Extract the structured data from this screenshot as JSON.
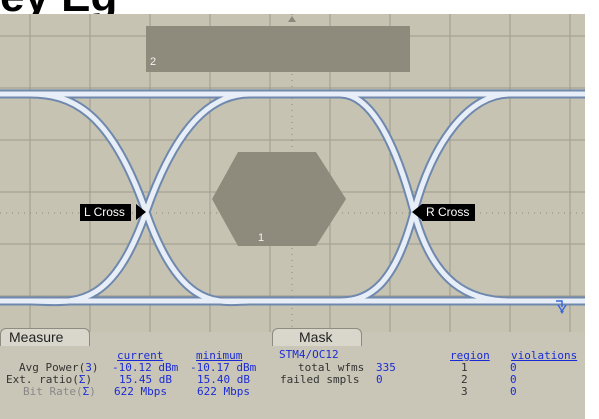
{
  "heading": "ey Eg",
  "screen": {
    "top_box_label": "2",
    "polygon_label": "1",
    "left_marker": "L Cross",
    "right_marker": "R Cross",
    "colors": {
      "screen_bg": "#c6c3b3",
      "grid": "#9e9b8d",
      "mask": "#8e8b7d",
      "trace": "#e8eef7",
      "trace_edge": "#6f88ad",
      "marker_bg": "#000000",
      "accent_blue": "#1a2bd6"
    }
  },
  "measure": {
    "tab_label": "Measure",
    "col_current": "current",
    "col_minimum": "minimum",
    "rows": [
      {
        "label": "Avg Power(",
        "suffix": "3",
        "close": ")",
        "current": "-10.12 dBm",
        "minimum": "-10.17 dBm"
      },
      {
        "label": "Ext. ratio(",
        "suffix": "Σ",
        "close": ")",
        "current": "15.45 dB",
        "minimum": "15.40 dB"
      },
      {
        "label": "Bit Rate(",
        "suffix": "Σ",
        "close": ")",
        "current": "622 Mbps",
        "minimum": "622 Mbps"
      }
    ]
  },
  "mask": {
    "tab_label": "Mask",
    "standard": "STM4/OC12",
    "total_wfms_label": "total wfms",
    "total_wfms_value": "335",
    "failed_smpls_label": "failed smpls",
    "failed_smpls_value": "0",
    "col_region": "region",
    "col_violations": "violations",
    "regions": [
      {
        "region": "1",
        "violations": "0"
      },
      {
        "region": "2",
        "violations": "0"
      },
      {
        "region": "3",
        "violations": "0"
      }
    ]
  }
}
